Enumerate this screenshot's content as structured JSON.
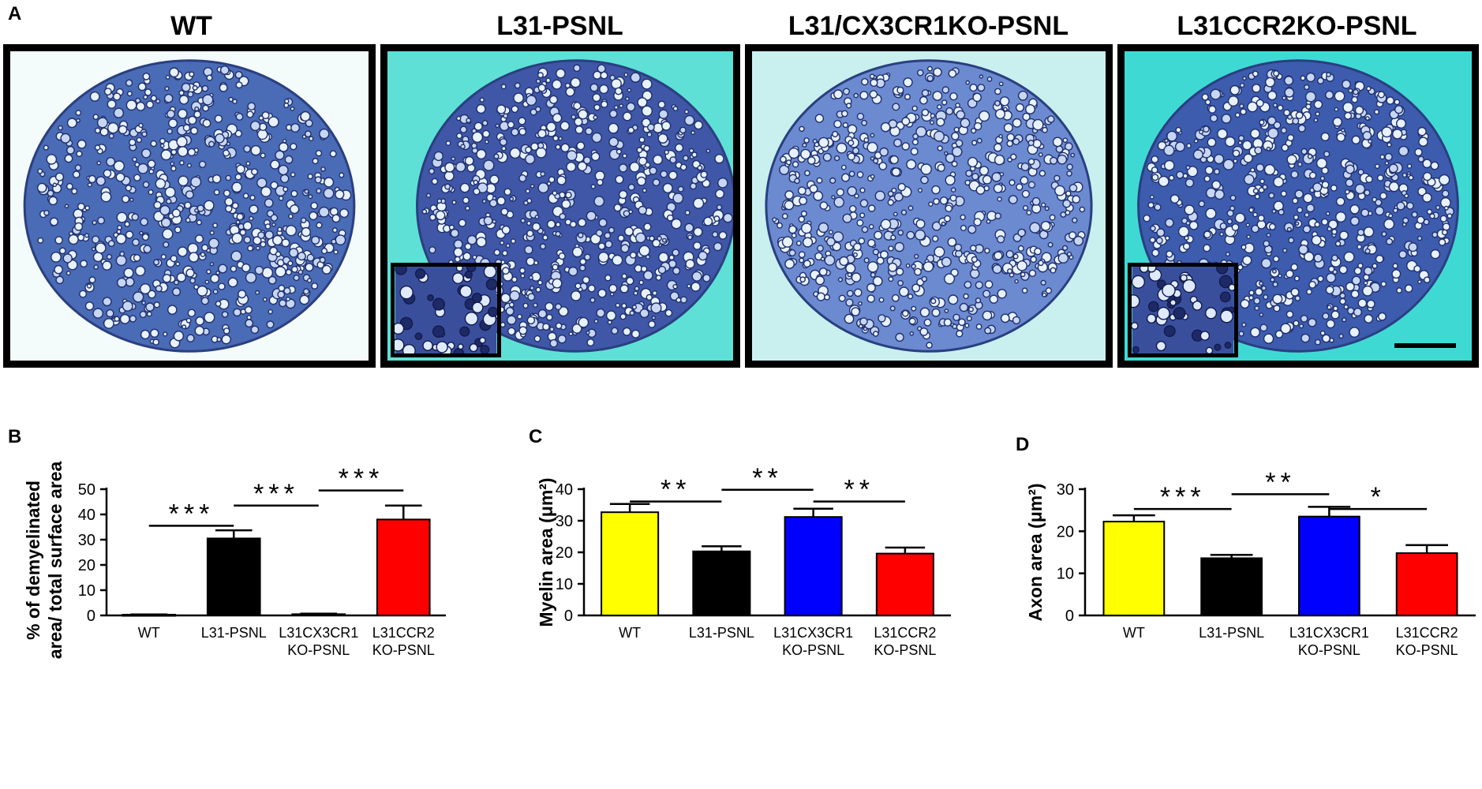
{
  "panel_letters": {
    "a": "A",
    "b": "B",
    "c": "C",
    "d": "D"
  },
  "micrographs": [
    {
      "title": "WT",
      "background": "#f4fbfb",
      "fill": "#4a6bb5",
      "inset": false,
      "scalebar": false
    },
    {
      "title": "L31-PSNL",
      "background": "#5ee0d6",
      "fill": "#3f57a6",
      "inset": true,
      "scalebar": false
    },
    {
      "title": "L31/CX3CR1KO-PSNL",
      "background": "#c9f0ee",
      "fill": "#6c8ad0",
      "inset": false,
      "scalebar": false
    },
    {
      "title": "L31CCR2KO-PSNL",
      "background": "#3fd9d4",
      "fill": "#3d5cae",
      "inset": true,
      "scalebar": true
    }
  ],
  "chart_data": [
    {
      "type": "bar",
      "panel": "B",
      "ylabel_lines": [
        "% of demyelinated",
        "area/ total surface area"
      ],
      "ylim": [
        0,
        50
      ],
      "yticks": [
        0,
        10,
        20,
        30,
        40,
        50
      ],
      "categories": [
        [
          "WT"
        ],
        [
          "L31-PSNL"
        ],
        [
          "L31CX3CR1",
          "KO-PSNL"
        ],
        [
          "L31CCR2",
          "KO-PSNL"
        ]
      ],
      "values": [
        0.3,
        30.5,
        0.5,
        38.0
      ],
      "errors": [
        0.1,
        3.2,
        0.2,
        5.5
      ],
      "colors": [
        "#000000",
        "#000000",
        "#000000",
        "#ff0000"
      ],
      "significance": [
        {
          "from": 0,
          "to": 1,
          "label": "***",
          "y": 35.5
        },
        {
          "from": 1,
          "to": 2,
          "label": "***",
          "y": 43.5
        },
        {
          "from": 2,
          "to": 3,
          "label": "***",
          "y": 49.5
        }
      ]
    },
    {
      "type": "bar",
      "panel": "C",
      "ylabel": "Myelin area (μm²)",
      "ylim": [
        0,
        40
      ],
      "yticks": [
        0,
        10,
        20,
        30,
        40
      ],
      "categories": [
        [
          "WT"
        ],
        [
          "L31-PSNL"
        ],
        [
          "L31CX3CR1",
          "KO-PSNL"
        ],
        [
          "L31CCR2",
          "KO-PSNL"
        ]
      ],
      "values": [
        32.7,
        20.3,
        31.2,
        19.6
      ],
      "errors": [
        2.6,
        1.6,
        2.6,
        1.9
      ],
      "colors": [
        "#ffff00",
        "#000000",
        "#0000ff",
        "#ff0000"
      ],
      "significance": [
        {
          "from": 0,
          "to": 1,
          "label": "**",
          "y": 36.1
        },
        {
          "from": 1,
          "to": 2,
          "label": "**",
          "y": 39.8
        },
        {
          "from": 2,
          "to": 3,
          "label": "**",
          "y": 36.1
        }
      ]
    },
    {
      "type": "bar",
      "panel": "D",
      "ylabel": "Axon area (μm²)",
      "ylim": [
        0,
        30
      ],
      "yticks": [
        0,
        10,
        20,
        30
      ],
      "categories": [
        [
          "WT"
        ],
        [
          "L31-PSNL"
        ],
        [
          "L31CX3CR1",
          "KO-PSNL"
        ],
        [
          "L31CCR2",
          "KO-PSNL"
        ]
      ],
      "values": [
        22.3,
        13.6,
        23.5,
        14.8
      ],
      "errors": [
        1.5,
        0.8,
        2.3,
        1.9
      ],
      "colors": [
        "#ffff00",
        "#000000",
        "#0000ff",
        "#ff0000"
      ],
      "significance": [
        {
          "from": 0,
          "to": 1,
          "label": "***",
          "y": 25.3
        },
        {
          "from": 1,
          "to": 2,
          "label": "**",
          "y": 28.8
        },
        {
          "from": 2,
          "to": 3,
          "label": "*",
          "y": 25.3
        }
      ]
    }
  ]
}
